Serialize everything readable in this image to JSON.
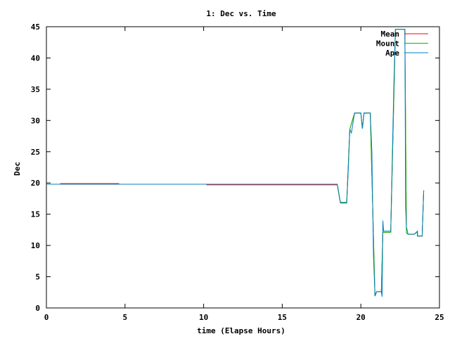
{
  "chart_data": {
    "type": "line",
    "title": "1: Dec vs. Time",
    "xlabel": "time (Elapse Hours)",
    "ylabel": "Dec",
    "xlim": [
      0,
      25
    ],
    "ylim": [
      0,
      45
    ],
    "x_ticks": [
      "0",
      "5",
      "10",
      "15",
      "20",
      "25"
    ],
    "y_ticks": [
      "0",
      "5",
      "10",
      "15",
      "20",
      "25",
      "30",
      "35",
      "40",
      "45"
    ],
    "grid": false,
    "legend_position": "top-right",
    "series": [
      {
        "name": "Mean",
        "color": "#ff0000",
        "points": [
          [
            0,
            19.8
          ],
          [
            0.9,
            19.8
          ],
          [
            0.9,
            19.9
          ],
          [
            4.6,
            19.9
          ],
          [
            4.6,
            19.8
          ],
          [
            10.2,
            19.8
          ],
          [
            10.2,
            19.7
          ],
          [
            18.2,
            19.7
          ],
          [
            18.5,
            19.7
          ],
          [
            18.7,
            16.8
          ],
          [
            19.1,
            16.8
          ],
          [
            19.3,
            28.6
          ],
          [
            19.6,
            31.2
          ],
          [
            20.0,
            31.2
          ],
          [
            20.1,
            28.7
          ],
          [
            20.2,
            31.2
          ],
          [
            20.6,
            31.2
          ],
          [
            20.9,
            1.9
          ],
          [
            21.0,
            2.6
          ],
          [
            21.3,
            2.6
          ],
          [
            21.4,
            12.1
          ],
          [
            21.9,
            12.1
          ],
          [
            22.2,
            44.6
          ],
          [
            22.8,
            44.6
          ],
          [
            22.9,
            12.0
          ],
          [
            23.0,
            11.8
          ],
          [
            23.4,
            11.8
          ],
          [
            23.6,
            12.2
          ],
          [
            23.6,
            11.5
          ],
          [
            23.9,
            11.5
          ],
          [
            24.0,
            18.8
          ]
        ]
      },
      {
        "name": "Mount",
        "color": "#00c000",
        "points": [
          [
            0,
            19.8
          ],
          [
            0.9,
            19.8
          ],
          [
            4.6,
            19.8
          ],
          [
            10.2,
            19.8
          ],
          [
            18.2,
            19.8
          ],
          [
            18.5,
            19.8
          ],
          [
            18.7,
            16.8
          ],
          [
            19.1,
            16.8
          ],
          [
            19.3,
            28.6
          ],
          [
            19.6,
            31.2
          ],
          [
            20.0,
            31.2
          ],
          [
            20.1,
            28.7
          ],
          [
            20.2,
            31.2
          ],
          [
            20.6,
            31.2
          ],
          [
            20.9,
            1.9
          ],
          [
            21.0,
            2.6
          ],
          [
            21.3,
            2.6
          ],
          [
            21.4,
            12.1
          ],
          [
            21.9,
            12.1
          ],
          [
            22.2,
            44.6
          ],
          [
            22.8,
            44.6
          ],
          [
            22.9,
            12.0
          ],
          [
            23.0,
            11.8
          ],
          [
            23.4,
            11.8
          ],
          [
            23.6,
            12.2
          ],
          [
            23.6,
            11.5
          ],
          [
            23.9,
            11.5
          ],
          [
            24.0,
            18.8
          ]
        ]
      },
      {
        "name": "Ape",
        "color": "#0080c0",
        "points": [
          [
            0,
            19.8
          ],
          [
            0.9,
            19.8
          ],
          [
            4.6,
            19.8
          ],
          [
            10.2,
            19.8
          ],
          [
            18.2,
            19.8
          ],
          [
            18.5,
            19.8
          ],
          [
            18.7,
            16.9
          ],
          [
            19.1,
            16.9
          ],
          [
            19.2,
            22.0
          ],
          [
            19.3,
            28.6
          ],
          [
            19.4,
            28.0
          ],
          [
            19.6,
            31.2
          ],
          [
            20.0,
            31.2
          ],
          [
            20.1,
            28.7
          ],
          [
            20.2,
            31.2
          ],
          [
            20.6,
            31.2
          ],
          [
            20.7,
            25.0
          ],
          [
            20.8,
            8.5
          ],
          [
            20.9,
            1.9
          ],
          [
            21.0,
            2.6
          ],
          [
            21.3,
            2.6
          ],
          [
            21.35,
            1.8
          ],
          [
            21.4,
            14.0
          ],
          [
            21.45,
            12.3
          ],
          [
            21.9,
            12.3
          ],
          [
            22.0,
            24.0
          ],
          [
            22.1,
            36.0
          ],
          [
            22.2,
            44.6
          ],
          [
            22.8,
            44.6
          ],
          [
            22.85,
            16.0
          ],
          [
            22.9,
            13.0
          ],
          [
            23.0,
            11.8
          ],
          [
            23.4,
            11.8
          ],
          [
            23.6,
            12.3
          ],
          [
            23.6,
            11.5
          ],
          [
            23.9,
            11.5
          ],
          [
            24.0,
            18.8
          ]
        ]
      }
    ]
  }
}
